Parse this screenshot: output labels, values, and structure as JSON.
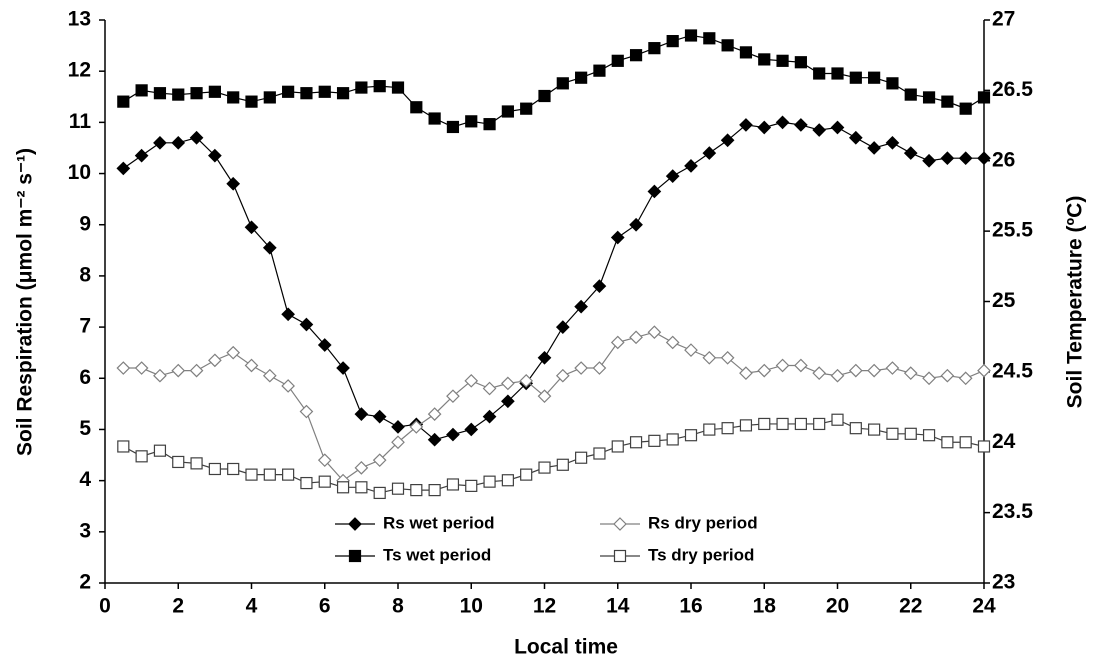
{
  "chart_data": {
    "type": "line",
    "xlabel": "Local time",
    "ylabel": "Soil Respiration  (μmol m⁻² s⁻¹)",
    "y2label": "Soil Temperature (ºC)",
    "x": [
      0.5,
      1,
      1.5,
      2,
      2.5,
      3,
      3.5,
      4,
      4.5,
      5,
      5.5,
      6,
      6.5,
      7,
      7.5,
      8,
      8.5,
      9,
      9.5,
      10,
      10.5,
      11,
      11.5,
      12,
      12.5,
      13,
      13.5,
      14,
      14.5,
      15,
      15.5,
      16,
      16.5,
      17,
      17.5,
      18,
      18.5,
      19,
      19.5,
      20,
      20.5,
      21,
      21.5,
      22,
      22.5,
      23,
      23.5,
      24
    ],
    "xlim": [
      0,
      24
    ],
    "xticks": [
      0,
      2,
      4,
      6,
      8,
      10,
      12,
      14,
      16,
      18,
      20,
      22,
      24
    ],
    "ylim": [
      2,
      13
    ],
    "yticks": [
      2,
      3,
      4,
      5,
      6,
      7,
      8,
      9,
      10,
      11,
      12,
      13
    ],
    "y2lim": [
      23,
      27
    ],
    "y2ticks": [
      23,
      23.5,
      24,
      24.5,
      25,
      25.5,
      26,
      26.5,
      27
    ],
    "series": [
      {
        "name": "Rs wet period",
        "color": "#000000",
        "marker": "diamond",
        "fill": "#000000",
        "values": [
          10.1,
          10.35,
          10.6,
          10.6,
          10.7,
          10.35,
          9.8,
          8.95,
          8.55,
          7.25,
          7.05,
          6.65,
          6.2,
          5.3,
          5.25,
          5.05,
          5.1,
          4.8,
          4.9,
          5.0,
          5.25,
          5.55,
          5.9,
          6.4,
          7.0,
          7.4,
          7.8,
          8.75,
          9.0,
          9.65,
          9.95,
          10.15,
          10.4,
          10.65,
          10.95,
          10.9,
          11.0,
          10.95,
          10.85,
          10.9,
          10.7,
          10.5,
          10.6,
          10.4,
          10.25,
          10.3,
          10.3,
          10.3
        ]
      },
      {
        "name": "Rs dry period",
        "color": "#808080",
        "marker": "diamond",
        "fill": "#ffffff",
        "values": [
          6.2,
          6.2,
          6.05,
          6.15,
          6.15,
          6.35,
          6.5,
          6.25,
          6.05,
          5.85,
          5.35,
          4.4,
          4.0,
          4.25,
          4.4,
          4.75,
          5.05,
          5.3,
          5.65,
          5.95,
          5.8,
          5.9,
          5.95,
          5.65,
          6.05,
          6.2,
          6.2,
          6.7,
          6.8,
          6.9,
          6.7,
          6.55,
          6.4,
          6.4,
          6.1,
          6.15,
          6.25,
          6.25,
          6.1,
          6.05,
          6.15,
          6.15,
          6.2,
          6.1,
          6.0,
          6.05,
          6.0,
          6.15
        ]
      },
      {
        "name": "Ts wet period",
        "color": "#000000",
        "marker": "square",
        "fill": "#000000",
        "axis": "y2",
        "values": [
          26.42,
          26.5,
          26.48,
          26.47,
          26.48,
          26.49,
          26.45,
          26.42,
          26.45,
          26.49,
          26.48,
          26.49,
          26.48,
          26.52,
          26.53,
          26.52,
          26.38,
          26.3,
          26.24,
          26.28,
          26.26,
          26.35,
          26.37,
          26.46,
          26.55,
          26.59,
          26.64,
          26.71,
          26.75,
          26.8,
          26.85,
          26.89,
          26.87,
          26.82,
          26.77,
          26.72,
          26.71,
          26.7,
          26.62,
          26.62,
          26.59,
          26.59,
          26.55,
          26.47,
          26.45,
          26.42,
          26.37,
          26.45
        ]
      },
      {
        "name": "Ts dry period",
        "color": "#404040",
        "marker": "square",
        "fill": "#ffffff",
        "axis": "y2",
        "values": [
          23.97,
          23.9,
          23.94,
          23.86,
          23.85,
          23.81,
          23.81,
          23.77,
          23.77,
          23.77,
          23.71,
          23.72,
          23.68,
          23.68,
          23.64,
          23.67,
          23.66,
          23.66,
          23.7,
          23.69,
          23.72,
          23.73,
          23.77,
          23.82,
          23.84,
          23.89,
          23.92,
          23.97,
          24.0,
          24.01,
          24.02,
          24.05,
          24.09,
          24.1,
          24.12,
          24.13,
          24.13,
          24.13,
          24.13,
          24.16,
          24.1,
          24.09,
          24.06,
          24.06,
          24.05,
          24.0,
          24.0,
          23.97
        ]
      }
    ]
  }
}
